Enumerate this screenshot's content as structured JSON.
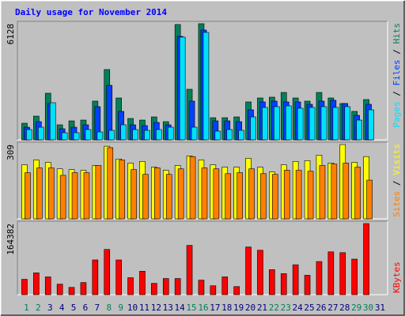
{
  "legend_separator": " / ",
  "chart_data": [
    {
      "type": "bar",
      "title": "Daily usage for November 2014",
      "ylim": [
        0,
        6128
      ],
      "yticks": [
        6128
      ],
      "series": [
        {
          "name": "Hits",
          "color": "#00805c",
          "values": [
            875,
            1251,
            2460,
            792,
            1000,
            1042,
            2043,
            3710,
            2209,
            1126,
            1042,
            1209,
            959,
            6086,
            2668,
            6128,
            1167,
            1167,
            1209,
            2001,
            2209,
            2251,
            2501,
            2209,
            2043,
            2501,
            2209,
            1918,
            1501,
            2126,
            null
          ]
        },
        {
          "name": "Files",
          "color": "#0040ff",
          "values": [
            667,
            959,
            1918,
            584,
            667,
            792,
            1751,
            2876,
            1501,
            792,
            750,
            917,
            792,
            5461,
            2043,
            5795,
            1001,
            1001,
            959,
            1584,
            2001,
            2043,
            2001,
            2001,
            1876,
            2043,
            2085,
            1918,
            1292,
            1876,
            null
          ]
        },
        {
          "name": "Pages",
          "color": "#00e0ff",
          "values": [
            542,
            667,
            1959,
            375,
            375,
            542,
            417,
            500,
            792,
            542,
            500,
            542,
            667,
            5420,
            667,
            5670,
            459,
            542,
            500,
            1209,
            1709,
            1751,
            1793,
            1668,
            1709,
            1751,
            1709,
            1751,
            1042,
            1584,
            null
          ]
        }
      ]
    },
    {
      "type": "bar",
      "ylim": [
        0,
        309
      ],
      "yticks": [
        309
      ],
      "series": [
        {
          "name": "Visits",
          "color": "#ffff00",
          "values": [
            225,
            245,
            235,
            208,
            205,
            202,
            222,
            302,
            249,
            232,
            239,
            215,
            202,
            222,
            262,
            245,
            225,
            215,
            215,
            252,
            215,
            195,
            225,
            239,
            242,
            265,
            232,
            309,
            235,
            259,
            null
          ]
        },
        {
          "name": "Sites",
          "color": "#ff8000",
          "values": [
            192,
            212,
            212,
            181,
            192,
            192,
            222,
            296,
            245,
            205,
            185,
            212,
            185,
            208,
            259,
            212,
            208,
            188,
            192,
            208,
            188,
            185,
            202,
            202,
            198,
            222,
            228,
            232,
            215,
            161,
            null
          ]
        }
      ]
    },
    {
      "type": "bar",
      "ylim": [
        0,
        164382
      ],
      "yticks": [
        164382
      ],
      "categories": [
        1,
        2,
        3,
        4,
        5,
        6,
        7,
        8,
        9,
        10,
        11,
        12,
        13,
        14,
        15,
        16,
        17,
        18,
        19,
        20,
        21,
        22,
        23,
        24,
        25,
        26,
        27,
        28,
        29,
        30,
        31
      ],
      "category_colors": [
        "#00805c",
        "#00805c",
        "#000080",
        "#000080",
        "#000080",
        "#000080",
        "#000080",
        "#00805c",
        "#00805c",
        "#000080",
        "#000080",
        "#000080",
        "#000080",
        "#000080",
        "#00805c",
        "#00805c",
        "#000080",
        "#000080",
        "#000080",
        "#000080",
        "#000080",
        "#00805c",
        "#00805c",
        "#000080",
        "#000080",
        "#000080",
        "#000080",
        "#000080",
        "#00805c",
        "#00805c",
        "#000080"
      ],
      "series": [
        {
          "name": "KBytes",
          "color": "#ff0000",
          "values": [
            35500,
            50440,
            41100,
            24290,
            16810,
            28020,
            80330,
            104600,
            80330,
            39230,
            54170,
            26150,
            37360,
            37360,
            113950,
            33620,
            20550,
            41100,
            18680,
            110210,
            102740,
            57910,
            48570,
            69120,
            44830,
            76590,
            99000,
            97140,
            82190,
            164382,
            null
          ]
        }
      ]
    }
  ]
}
